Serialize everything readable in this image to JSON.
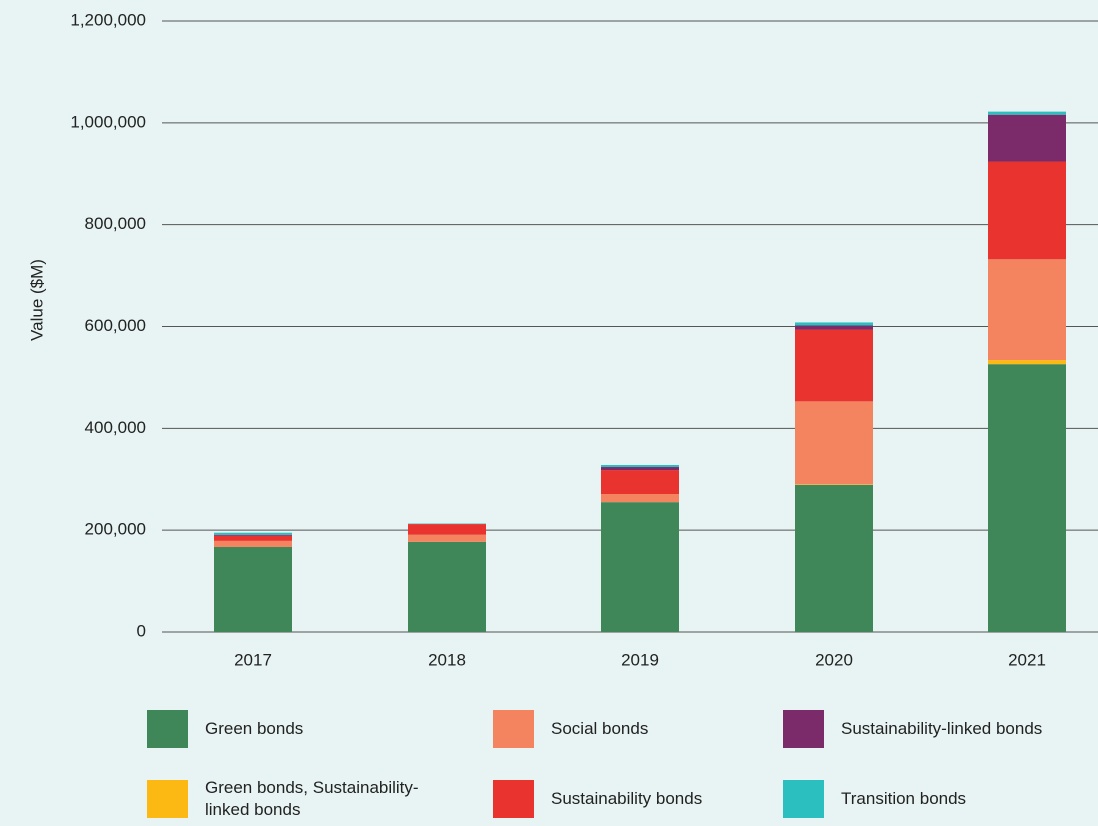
{
  "chart_data": {
    "type": "bar",
    "stacked": true,
    "y_label": "Value ($M)",
    "categories": [
      "2017",
      "2018",
      "2019",
      "2020",
      "2021"
    ],
    "series": [
      {
        "name": "Green bonds",
        "color": "#3f8659",
        "values": [
          167000,
          177000,
          255000,
          289000,
          526000
        ]
      },
      {
        "name": "Green bonds, Sustainability-linked bonds",
        "color": "#fdb913",
        "values": [
          0,
          0,
          0,
          1000,
          8000
        ]
      },
      {
        "name": "Social bonds",
        "color": "#f4845f",
        "values": [
          12000,
          14000,
          16000,
          163000,
          198000
        ]
      },
      {
        "name": "Sustainability bonds",
        "color": "#e9332f",
        "values": [
          10000,
          21000,
          47000,
          141000,
          192000
        ]
      },
      {
        "name": "Sustainability-linked bonds",
        "color": "#7b2a6a",
        "values": [
          2000,
          0,
          6000,
          8000,
          92000
        ]
      },
      {
        "name": "Transition bonds",
        "color": "#2bbfbf",
        "values": [
          4000,
          1000,
          4000,
          6000,
          6000
        ]
      }
    ],
    "ylim": [
      0,
      1200000
    ],
    "yticks": [
      0,
      {
        "value": 200000,
        "label": "200,000"
      },
      {
        "value": 400000,
        "label": "400,000"
      },
      {
        "value": 600000,
        "label": "600,000"
      },
      {
        "value": 800000,
        "label": "800,000"
      },
      {
        "value": 1000000,
        "label": "1,000,000"
      },
      {
        "value": 1200000,
        "label": "1,200,000"
      }
    ],
    "grid": true
  }
}
